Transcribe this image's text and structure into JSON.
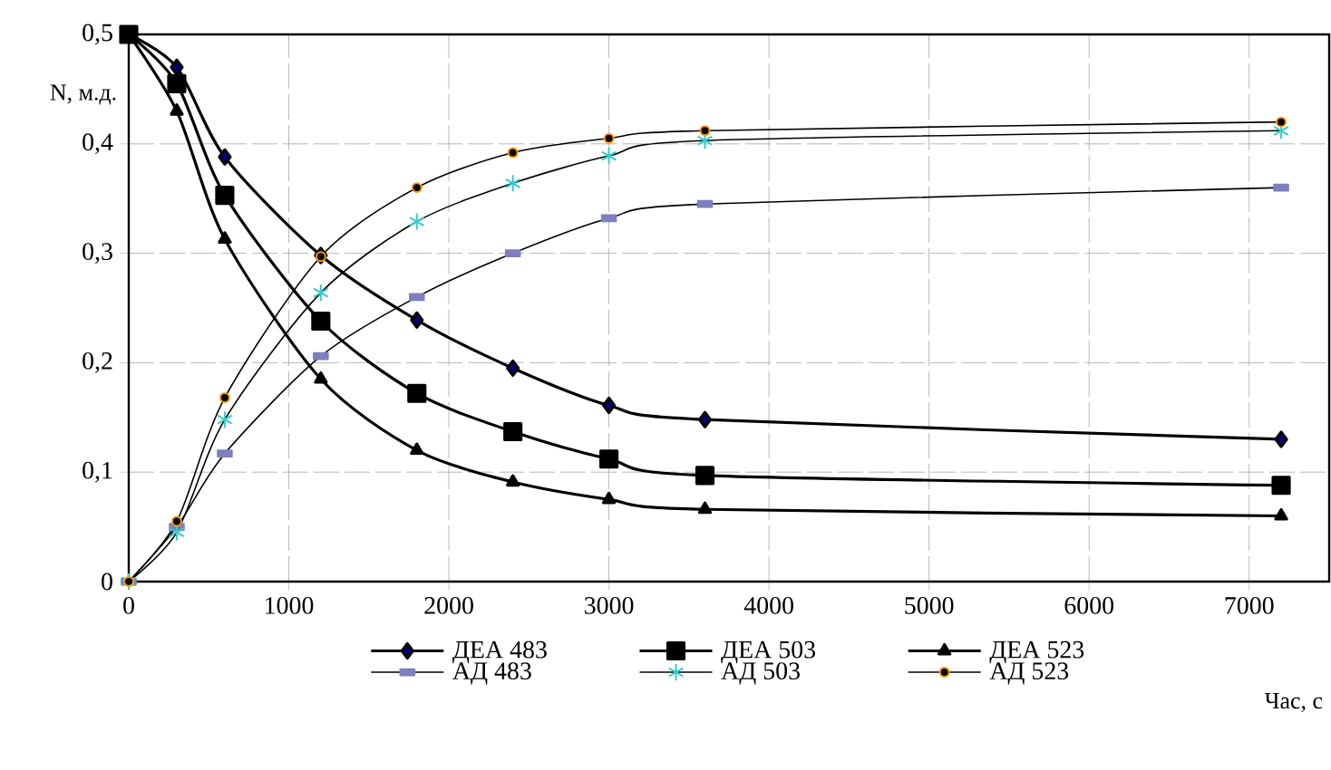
{
  "chart_data": {
    "type": "line",
    "xlabel": "Час, с",
    "ylabel": "N, м.д.",
    "x": [
      0,
      300,
      600,
      1200,
      1800,
      2400,
      3000,
      3600,
      7200
    ],
    "series": [
      {
        "name": "ДЕА 483",
        "color": "#000080",
        "marker": "diamond",
        "values": [
          0.5,
          0.47,
          0.388,
          0.298,
          0.239,
          0.195,
          0.161,
          0.148,
          0.13
        ]
      },
      {
        "name": "ДЕА 503",
        "color": "#000000",
        "marker": "square",
        "values": [
          0.5,
          0.455,
          0.353,
          0.238,
          0.172,
          0.137,
          0.112,
          0.097,
          0.088
        ]
      },
      {
        "name": "ДЕА 523",
        "color": "#000000",
        "marker": "triangle",
        "values": [
          0.5,
          0.43,
          0.313,
          0.185,
          0.12,
          0.091,
          0.075,
          0.066,
          0.06
        ]
      },
      {
        "name": "АД 483",
        "color": "#7f7fbf",
        "marker": "square",
        "values": [
          0,
          0.05,
          0.117,
          0.206,
          0.26,
          0.3,
          0.332,
          0.345,
          0.36
        ]
      },
      {
        "name": "АД 503",
        "color": "#33cccc",
        "marker": "cross",
        "values": [
          0,
          0.045,
          0.148,
          0.264,
          0.329,
          0.364,
          0.389,
          0.403,
          0.412
        ]
      },
      {
        "name": "АД 523",
        "color": "#ff9900",
        "marker": "circle",
        "values": [
          0,
          0.055,
          0.168,
          0.297,
          0.36,
          0.392,
          0.405,
          0.412,
          0.42
        ]
      }
    ],
    "xlim": [
      0,
      7500
    ],
    "xticks": [
      0,
      1000,
      2000,
      3000,
      4000,
      5000,
      6000,
      7000
    ],
    "ylim": [
      0,
      0.5
    ],
    "yticks": [
      0,
      {
        "value": 0.1,
        "label": "0,1"
      },
      {
        "value": 0.2,
        "label": "0,2"
      },
      {
        "value": 0.3,
        "label": "0,3"
      },
      {
        "value": 0.4,
        "label": "0,4"
      },
      {
        "value": 0.5,
        "label": "0,5"
      }
    ],
    "grid": true,
    "legend": "bottom",
    "line_style": "solid"
  }
}
